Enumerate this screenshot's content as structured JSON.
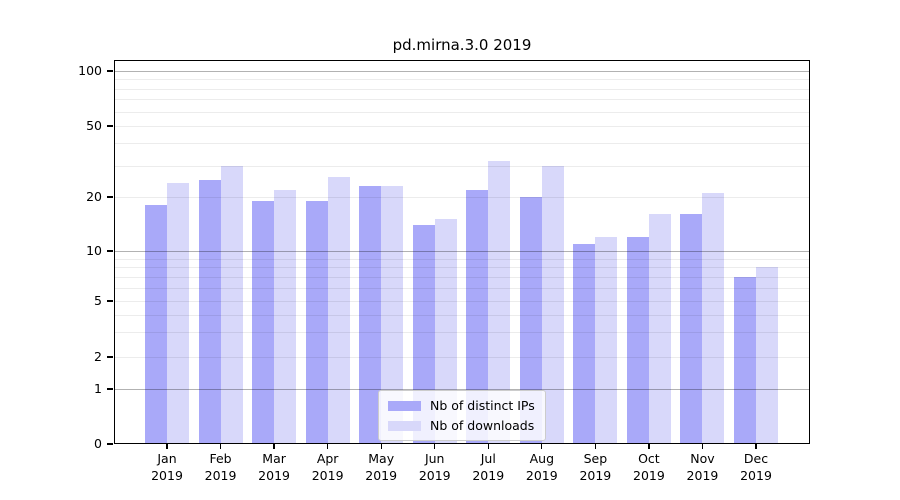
{
  "title": "pd.mirna.3.0 2019",
  "chart_data": {
    "type": "bar",
    "title": "pd.mirna.3.0 2019",
    "categories": [
      "Jan 2019",
      "Feb 2019",
      "Mar 2019",
      "Apr 2019",
      "May 2019",
      "Jun 2019",
      "Jul 2019",
      "Aug 2019",
      "Sep 2019",
      "Oct 2019",
      "Nov 2019",
      "Dec 2019"
    ],
    "series": [
      {
        "name": "Nb of distinct IPs",
        "color": "#a9a9f9",
        "values": [
          18,
          25,
          19,
          19,
          23,
          14,
          22,
          20,
          11,
          12,
          16,
          7
        ]
      },
      {
        "name": "Nb of downloads",
        "color": "#d8d8fa",
        "values": [
          24,
          30,
          22,
          26,
          23,
          15,
          32,
          30,
          12,
          16,
          21,
          8
        ]
      }
    ],
    "xlabel": "",
    "ylabel": "",
    "yscale": "symlog",
    "ylim": [
      0,
      115
    ],
    "yticks": [
      0,
      1,
      2,
      5,
      10,
      20,
      50,
      100
    ],
    "major_gridlines": [
      1,
      10,
      100
    ],
    "minor_gridlines": [
      2,
      3,
      4,
      5,
      6,
      7,
      8,
      9,
      20,
      30,
      40,
      50,
      60,
      70,
      80,
      90
    ],
    "grid": true,
    "legend_position": "lower center"
  },
  "colors": {
    "spine": "#000000",
    "legend_border": "#cccccc",
    "background": "#ffffff"
  }
}
